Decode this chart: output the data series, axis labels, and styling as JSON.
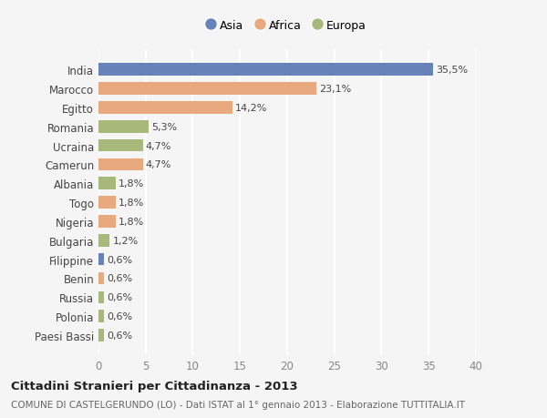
{
  "countries": [
    "India",
    "Marocco",
    "Egitto",
    "Romania",
    "Ucraina",
    "Camerun",
    "Albania",
    "Togo",
    "Nigeria",
    "Bulgaria",
    "Filippine",
    "Benin",
    "Russia",
    "Polonia",
    "Paesi Bassi"
  ],
  "values": [
    35.5,
    23.1,
    14.2,
    5.3,
    4.7,
    4.7,
    1.8,
    1.8,
    1.8,
    1.2,
    0.6,
    0.6,
    0.6,
    0.6,
    0.6
  ],
  "labels": [
    "35,5%",
    "23,1%",
    "14,2%",
    "5,3%",
    "4,7%",
    "4,7%",
    "1,8%",
    "1,8%",
    "1,8%",
    "1,2%",
    "0,6%",
    "0,6%",
    "0,6%",
    "0,6%",
    "0,6%"
  ],
  "continents": [
    "Asia",
    "Africa",
    "Africa",
    "Europa",
    "Europa",
    "Africa",
    "Europa",
    "Africa",
    "Africa",
    "Europa",
    "Asia",
    "Africa",
    "Europa",
    "Europa",
    "Europa"
  ],
  "colors": {
    "Asia": "#6682b8",
    "Africa": "#e8a97e",
    "Europa": "#a8b87a"
  },
  "xlim": [
    0,
    40
  ],
  "xticks": [
    0,
    5,
    10,
    15,
    20,
    25,
    30,
    35,
    40
  ],
  "title": "Cittadini Stranieri per Cittadinanza - 2013",
  "subtitle": "COMUNE DI CASTELGERUNDO (LO) - Dati ISTAT al 1° gennaio 2013 - Elaborazione TUTTITALIA.IT",
  "background_color": "#f5f5f5",
  "grid_color": "#ffffff",
  "bar_height": 0.65,
  "legend_order": [
    "Asia",
    "Africa",
    "Europa"
  ]
}
